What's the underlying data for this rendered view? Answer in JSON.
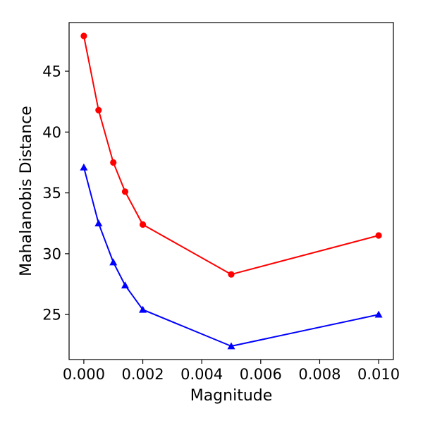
{
  "chart_data": {
    "type": "line",
    "xlabel": "Magnitude",
    "ylabel": "Mahalanobis Distance",
    "xlim": [
      -0.0005,
      0.0105
    ],
    "ylim": [
      21.3,
      49.0
    ],
    "x_ticks": [
      0.0,
      0.002,
      0.004,
      0.006,
      0.008,
      0.01
    ],
    "x_tick_labels": [
      "0.000",
      "0.002",
      "0.004",
      "0.006",
      "0.008",
      "0.010"
    ],
    "y_ticks": [
      25,
      30,
      35,
      40,
      45
    ],
    "y_tick_labels": [
      "25",
      "30",
      "35",
      "40",
      "45"
    ],
    "grid": false,
    "x": [
      0.0,
      0.0005,
      0.001,
      0.0014,
      0.002,
      0.005,
      0.01
    ],
    "series": [
      {
        "color": "#ff0000",
        "marker": "circle",
        "values": [
          47.9,
          41.8,
          37.5,
          35.1,
          32.4,
          28.3,
          31.5
        ]
      },
      {
        "color": "#0000ff",
        "marker": "triangle",
        "values": [
          37.1,
          32.5,
          29.3,
          27.4,
          25.4,
          22.4,
          25.0
        ]
      }
    ]
  }
}
